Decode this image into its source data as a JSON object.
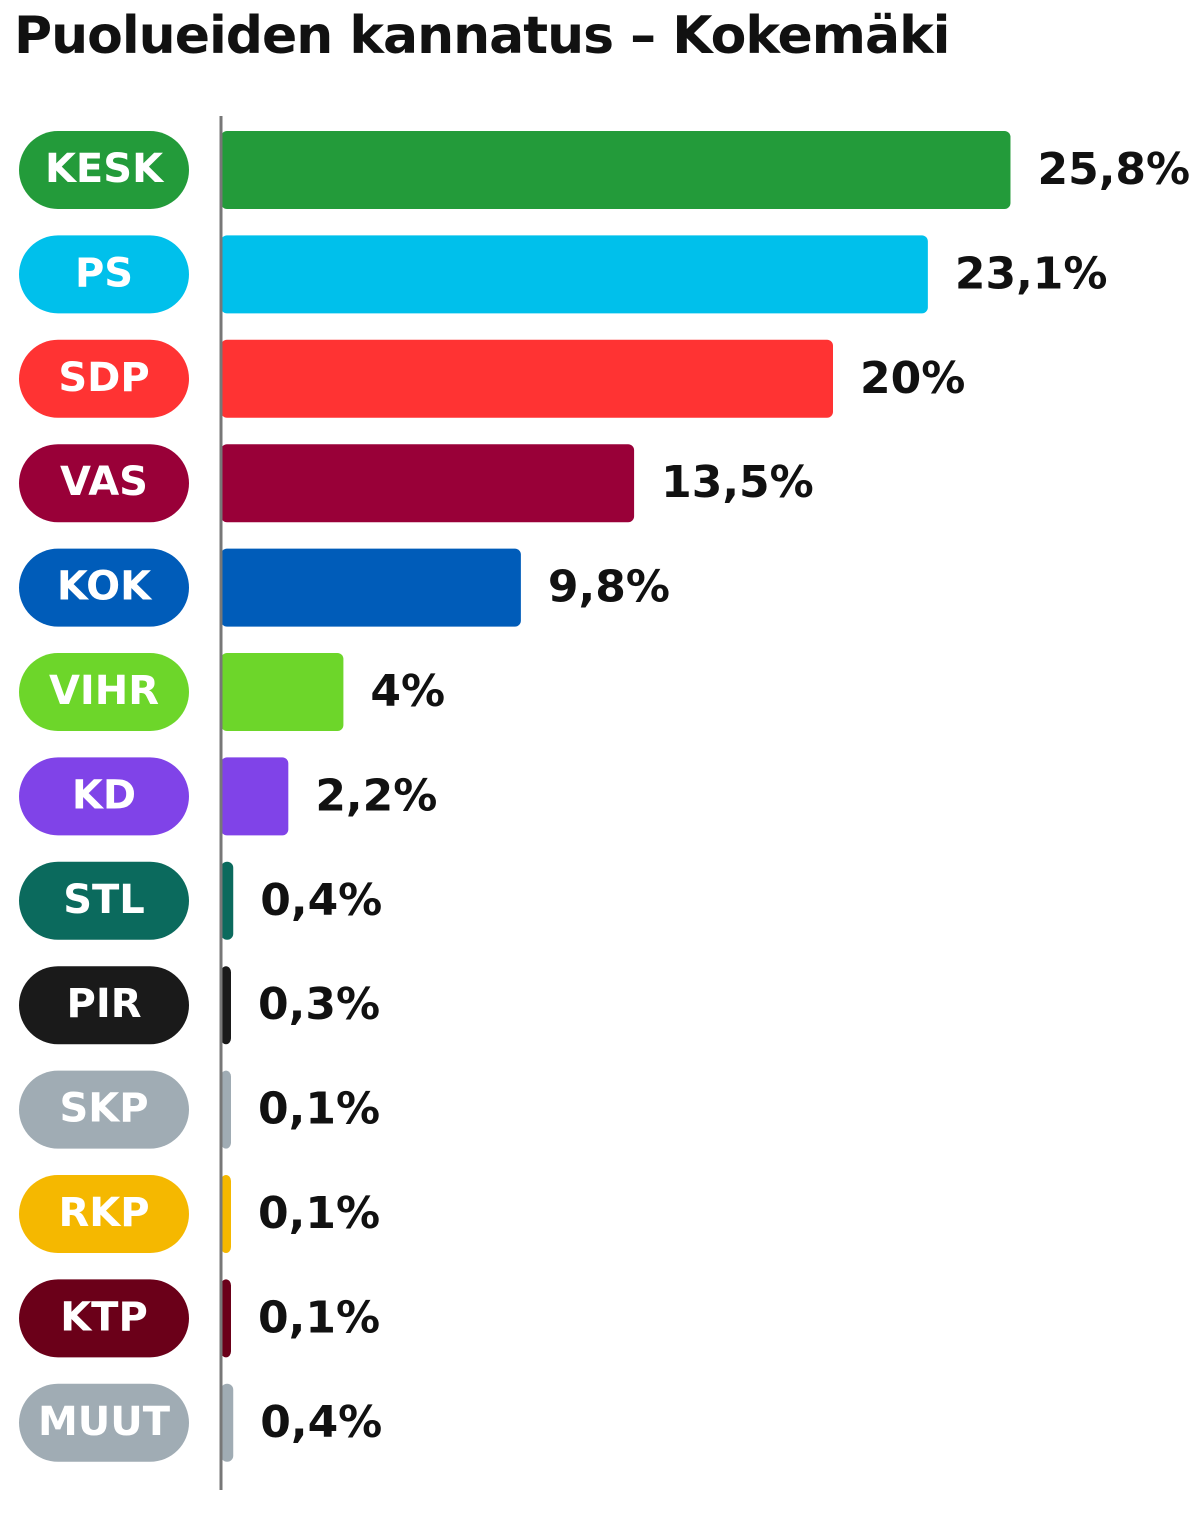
{
  "chart_data": {
    "type": "bar",
    "orientation": "horizontal",
    "title": "Puolueiden kannatus – Kokemäki",
    "xlabel": "",
    "ylabel": "",
    "categories": [
      "KESK",
      "PS",
      "SDP",
      "VAS",
      "KOK",
      "VIHR",
      "KD",
      "STL",
      "PIR",
      "SKP",
      "RKP",
      "KTP",
      "MUUT"
    ],
    "values": [
      25.8,
      23.1,
      20,
      13.5,
      9.8,
      4,
      2.2,
      0.4,
      0.3,
      0.1,
      0.1,
      0.1,
      0.4
    ],
    "value_labels": [
      "25,8%",
      "23,1%",
      "20%",
      "13,5%",
      "9,8%",
      "4%",
      "2,2%",
      "0,4%",
      "0,3%",
      "0,1%",
      "0,1%",
      "0,1%",
      "0,4%"
    ],
    "colors": [
      "#239b3a",
      "#00c0eb",
      "#ff3333",
      "#990038",
      "#005cb9",
      "#6dd62a",
      "#8043e8",
      "#0b6a5d",
      "#1a1a1a",
      "#a0acb4",
      "#f5b800",
      "#6b0019",
      "#a0acb4"
    ],
    "unit": "%",
    "grid": false,
    "legend": "none"
  }
}
